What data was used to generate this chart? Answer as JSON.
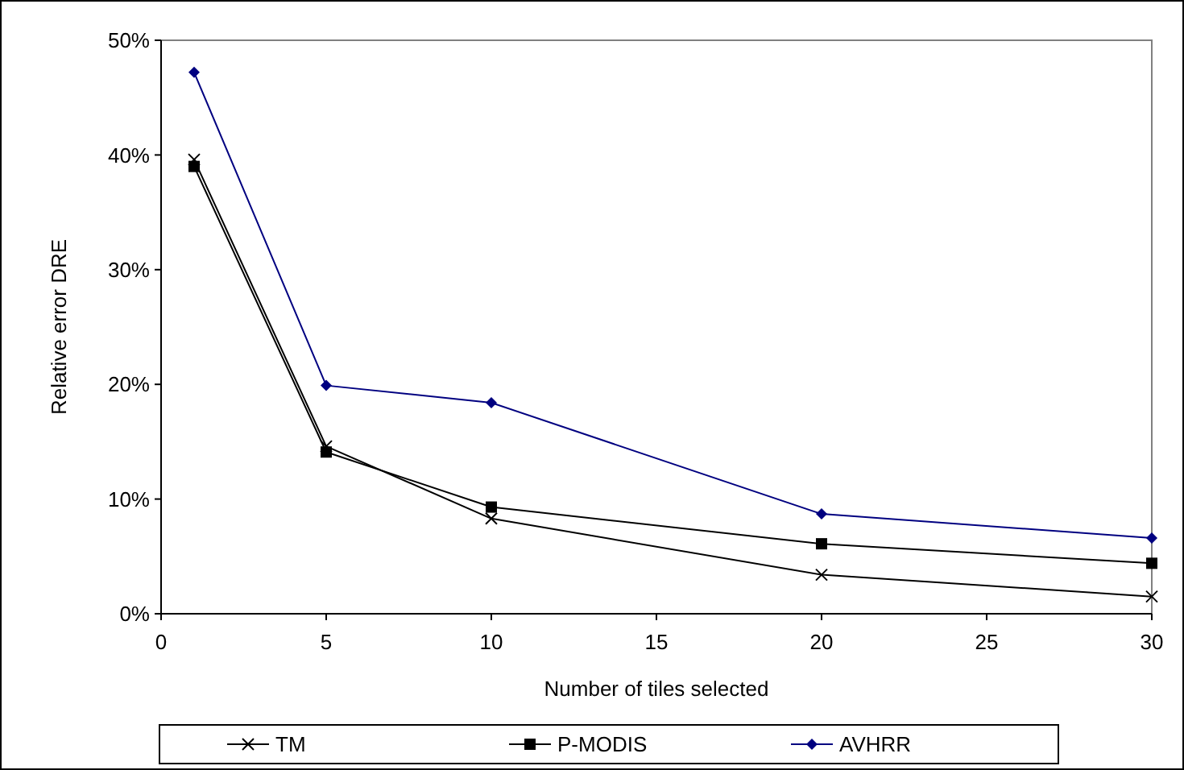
{
  "chart_data": {
    "type": "line",
    "xlabel": "Number of tiles selected",
    "ylabel": "Relative error DRE",
    "x": [
      1,
      5,
      10,
      20,
      30
    ],
    "series": [
      {
        "name": "TM",
        "color": "#000000",
        "marker": "cross",
        "values": [
          39.6,
          14.6,
          8.3,
          3.4,
          1.5
        ]
      },
      {
        "name": "P-MODIS",
        "color": "#000000",
        "marker": "square",
        "values": [
          39.0,
          14.1,
          9.3,
          6.1,
          4.4
        ]
      },
      {
        "name": "AVHRR",
        "color": "#000080",
        "marker": "diamond",
        "values": [
          47.2,
          19.9,
          18.4,
          8.7,
          6.6
        ]
      }
    ],
    "xlim": [
      0,
      30
    ],
    "xticks": [
      0,
      5,
      10,
      15,
      20,
      25,
      30
    ],
    "ylim": [
      0,
      50
    ],
    "yticks": [
      {
        "value": 0,
        "label": "0%"
      },
      {
        "value": 10,
        "label": "10%"
      },
      {
        "value": 20,
        "label": "20%"
      },
      {
        "value": 30,
        "label": "30%"
      },
      {
        "value": 40,
        "label": "40%"
      },
      {
        "value": 50,
        "label": "50%"
      }
    ],
    "legend": "bottom",
    "grid": false,
    "line_style": "solid"
  }
}
